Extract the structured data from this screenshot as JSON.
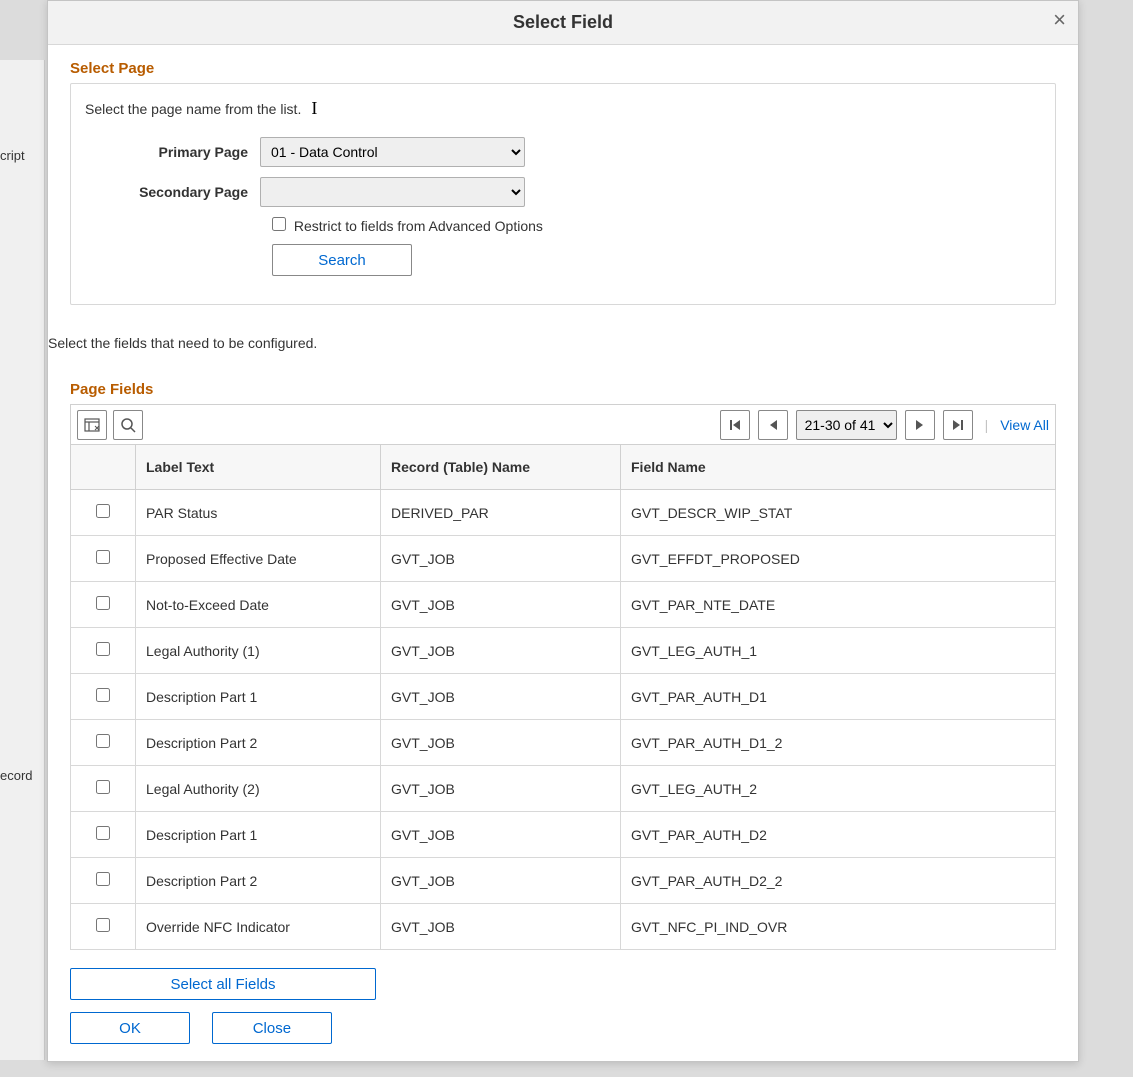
{
  "background": {
    "label1": "cript",
    "label2": "ecord"
  },
  "modal": {
    "title": "Select Field",
    "close": "×"
  },
  "selectPage": {
    "title": "Select Page",
    "desc": "Select the page name from the list.",
    "primaryLabel": "Primary Page",
    "primaryValue": "01 - Data Control",
    "secondaryLabel": "Secondary Page",
    "secondaryValue": "",
    "restrictLabel": "Restrict to fields from Advanced Options",
    "searchLabel": "Search"
  },
  "instruction": "Select the fields that need to be configured.",
  "pageFields": {
    "title": "Page Fields",
    "rangeText": "21-30 of 41",
    "viewAll": "View All",
    "columns": {
      "labelText": "Label Text",
      "recordName": "Record (Table) Name",
      "fieldName": "Field Name"
    },
    "rows": [
      {
        "label": "PAR Status",
        "record": "DERIVED_PAR",
        "field": "GVT_DESCR_WIP_STAT"
      },
      {
        "label": "Proposed Effective Date",
        "record": "GVT_JOB",
        "field": "GVT_EFFDT_PROPOSED"
      },
      {
        "label": "Not-to-Exceed Date",
        "record": "GVT_JOB",
        "field": "GVT_PAR_NTE_DATE"
      },
      {
        "label": "Legal Authority (1)",
        "record": "GVT_JOB",
        "field": "GVT_LEG_AUTH_1"
      },
      {
        "label": "Description Part 1",
        "record": "GVT_JOB",
        "field": "GVT_PAR_AUTH_D1"
      },
      {
        "label": "Description Part 2",
        "record": "GVT_JOB",
        "field": "GVT_PAR_AUTH_D1_2"
      },
      {
        "label": "Legal Authority (2)",
        "record": "GVT_JOB",
        "field": "GVT_LEG_AUTH_2"
      },
      {
        "label": "Description Part 1",
        "record": "GVT_JOB",
        "field": "GVT_PAR_AUTH_D2"
      },
      {
        "label": "Description Part 2",
        "record": "GVT_JOB",
        "field": "GVT_PAR_AUTH_D2_2"
      },
      {
        "label": "Override NFC Indicator",
        "record": "GVT_JOB",
        "field": "GVT_NFC_PI_IND_OVR"
      }
    ]
  },
  "actions": {
    "selectAll": "Select all Fields",
    "ok": "OK",
    "close": "Close"
  }
}
